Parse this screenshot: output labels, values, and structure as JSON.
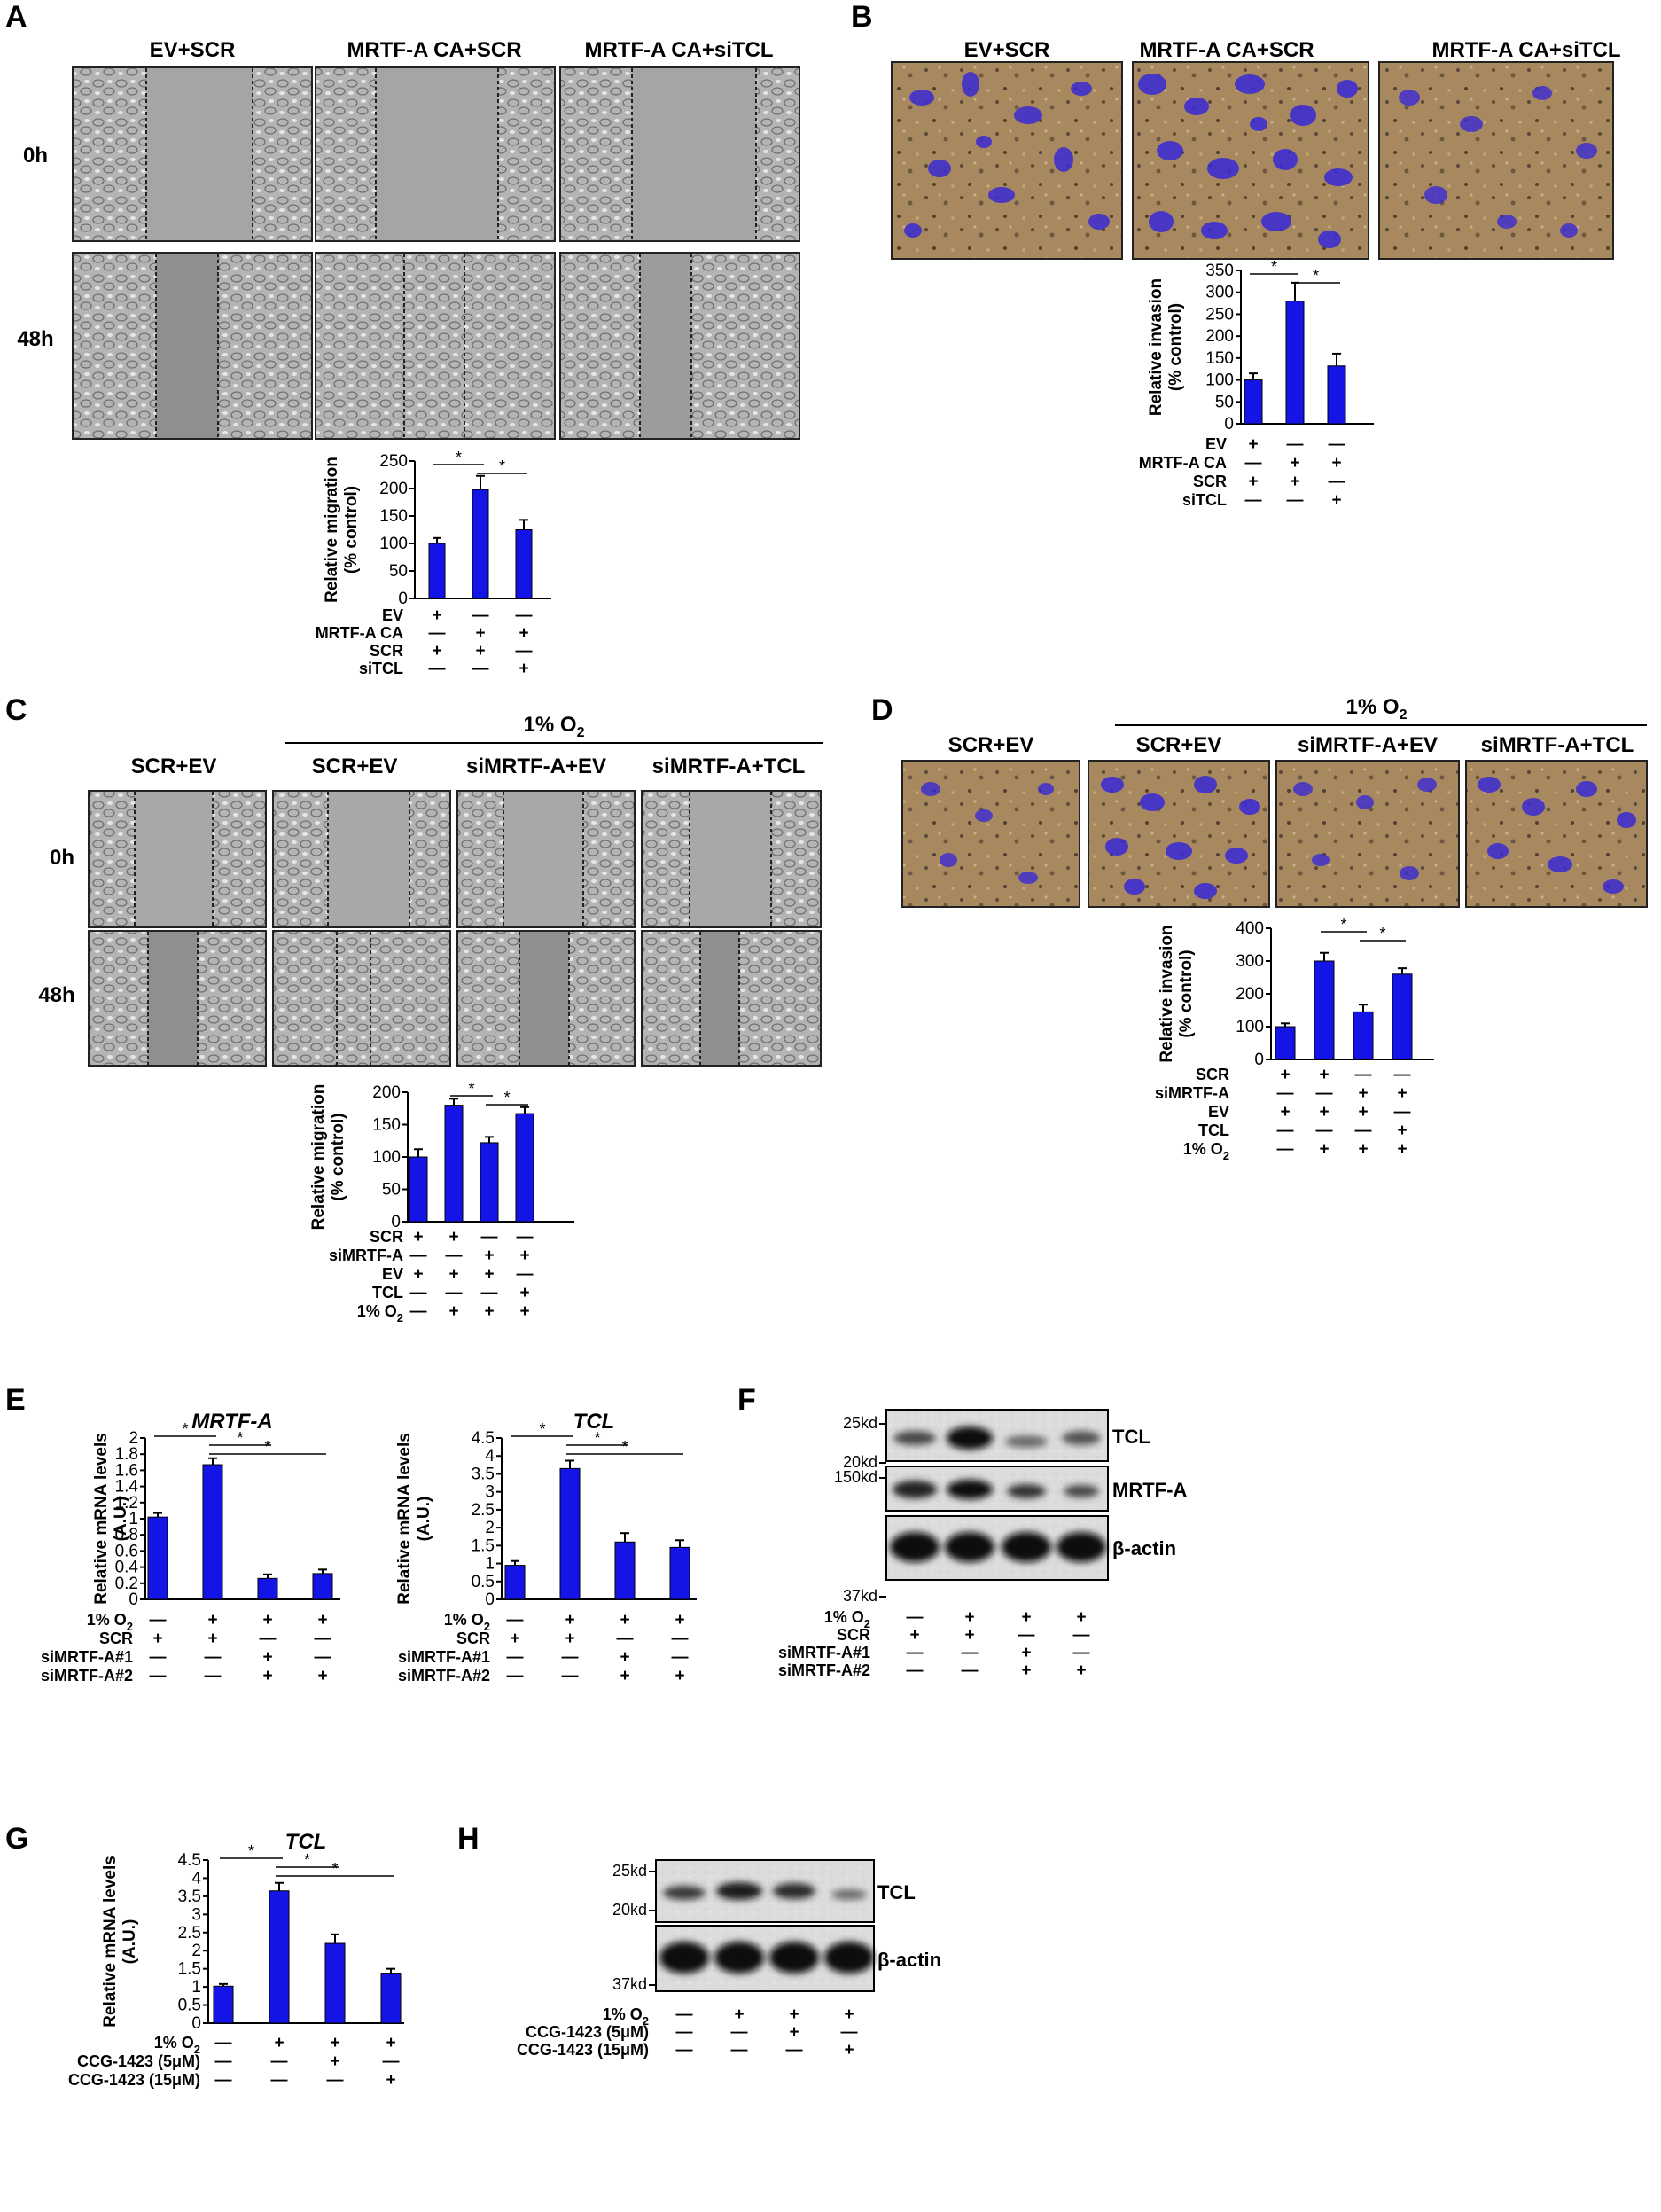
{
  "colors": {
    "bar": "#1414e6",
    "axis": "#000000",
    "micro_bg": "#a9a9a9",
    "invasion_bg": "#b08a5e",
    "cells": "#3a2cd0"
  },
  "panels": {
    "A": {
      "letter": "A",
      "headers": [
        "EV+SCR",
        "MRTF-A CA+SCR",
        "MRTF-A CA+siTCL"
      ],
      "rows": [
        "0h",
        "48h"
      ]
    },
    "B": {
      "letter": "B",
      "headers": [
        "EV+SCR",
        "MRTF-A CA+SCR",
        "MRTF-A CA+siTCL"
      ]
    },
    "C": {
      "letter": "C",
      "headers": [
        "SCR+EV",
        "SCR+EV",
        "siMRTF-A+EV",
        "siMRTF-A+TCL"
      ],
      "bracket_label": "1% O",
      "bracket_sub": "2",
      "rows": [
        "0h",
        "48h"
      ]
    },
    "D": {
      "letter": "D",
      "headers": [
        "SCR+EV",
        "SCR+EV",
        "siMRTF-A+EV",
        "siMRTF-A+TCL"
      ],
      "bracket_label": "1% O",
      "bracket_sub": "2"
    },
    "E": {
      "letter": "E"
    },
    "F": {
      "letter": "F",
      "markers": [
        "25kd",
        "20kd",
        "150kd",
        "37kd"
      ],
      "labels": [
        "TCL",
        "MRTF-A",
        "β-actin"
      ],
      "conditions": [
        {
          "label": "1% O",
          "sub": "2",
          "signs": [
            "—",
            "+",
            "+",
            "+"
          ]
        },
        {
          "label": "SCR",
          "sub": "",
          "signs": [
            "+",
            "+",
            "—",
            "—"
          ]
        },
        {
          "label": "siMRTF-A#1",
          "sub": "",
          "signs": [
            "—",
            "—",
            "+",
            "—"
          ]
        },
        {
          "label": "siMRTF-A#2",
          "sub": "",
          "signs": [
            "—",
            "—",
            "+",
            "+"
          ]
        }
      ]
    },
    "G": {
      "letter": "G"
    },
    "H": {
      "letter": "H",
      "markers": [
        "25kd",
        "20kd",
        "37kd"
      ],
      "labels": [
        "TCL",
        "β-actin"
      ],
      "conditions": [
        {
          "label": "1% O",
          "sub": "2",
          "signs": [
            "—",
            "+",
            "+",
            "+"
          ]
        },
        {
          "label": "CCG-1423 (5μM)",
          "sub": "",
          "signs": [
            "—",
            "—",
            "+",
            "—"
          ]
        },
        {
          "label": "CCG-1423 (15μM)",
          "sub": "",
          "signs": [
            "—",
            "—",
            "—",
            "+"
          ]
        }
      ]
    }
  },
  "chart_data": [
    {
      "id": "A",
      "type": "bar",
      "title": "",
      "ylabel": [
        "Relative migration",
        "(% control)"
      ],
      "ylim": [
        0,
        250
      ],
      "yticks": [
        0,
        50,
        100,
        150,
        200,
        250
      ],
      "values": [
        100,
        198,
        125
      ],
      "errors": [
        10,
        25,
        18
      ],
      "significance": [
        [
          0,
          1
        ],
        [
          1,
          2
        ]
      ],
      "conditions": [
        {
          "label": "EV",
          "sub": "",
          "signs": [
            "+",
            "—",
            "—"
          ]
        },
        {
          "label": "MRTF-A CA",
          "sub": "",
          "signs": [
            "—",
            "+",
            "+"
          ]
        },
        {
          "label": "SCR",
          "sub": "",
          "signs": [
            "+",
            "+",
            "—"
          ]
        },
        {
          "label": "siTCL",
          "sub": "",
          "signs": [
            "—",
            "—",
            "+"
          ]
        }
      ]
    },
    {
      "id": "B",
      "type": "bar",
      "title": "",
      "ylabel": [
        "Relative invasion",
        "(% control)"
      ],
      "ylim": [
        0,
        350
      ],
      "yticks": [
        0,
        50,
        100,
        150,
        200,
        250,
        300,
        350
      ],
      "values": [
        100,
        280,
        132
      ],
      "errors": [
        15,
        42,
        28
      ],
      "significance": [
        [
          0,
          1
        ],
        [
          1,
          2
        ]
      ],
      "conditions": [
        {
          "label": "EV",
          "sub": "",
          "signs": [
            "+",
            "—",
            "—"
          ]
        },
        {
          "label": "MRTF-A CA",
          "sub": "",
          "signs": [
            "—",
            "+",
            "+"
          ]
        },
        {
          "label": "SCR",
          "sub": "",
          "signs": [
            "+",
            "+",
            "—"
          ]
        },
        {
          "label": "siTCL",
          "sub": "",
          "signs": [
            "—",
            "—",
            "+"
          ]
        }
      ]
    },
    {
      "id": "C",
      "type": "bar",
      "title": "",
      "ylabel": [
        "Relative migration",
        "(% control)"
      ],
      "ylim": [
        0,
        200
      ],
      "yticks": [
        0,
        50,
        100,
        150,
        200
      ],
      "values": [
        100,
        180,
        122,
        167
      ],
      "errors": [
        12,
        10,
        9,
        10
      ],
      "significance": [
        [
          1,
          2
        ],
        [
          2,
          3
        ]
      ],
      "conditions": [
        {
          "label": "SCR",
          "sub": "",
          "signs": [
            "+",
            "+",
            "—",
            "—"
          ]
        },
        {
          "label": "siMRTF-A",
          "sub": "",
          "signs": [
            "—",
            "—",
            "+",
            "+"
          ]
        },
        {
          "label": "EV",
          "sub": "",
          "signs": [
            "+",
            "+",
            "+",
            "—"
          ]
        },
        {
          "label": "TCL",
          "sub": "",
          "signs": [
            "—",
            "—",
            "—",
            "+"
          ]
        },
        {
          "label": "1% O",
          "sub": "2",
          "signs": [
            "—",
            "+",
            "+",
            "+"
          ]
        }
      ]
    },
    {
      "id": "D",
      "type": "bar",
      "title": "",
      "ylabel": [
        "Relative invasion",
        "(% control)"
      ],
      "ylim": [
        0,
        400
      ],
      "yticks": [
        0,
        100,
        200,
        300,
        400
      ],
      "values": [
        100,
        300,
        145,
        260
      ],
      "errors": [
        10,
        25,
        22,
        18
      ],
      "significance": [
        [
          1,
          2
        ],
        [
          2,
          3
        ]
      ],
      "conditions": [
        {
          "label": "SCR",
          "sub": "",
          "signs": [
            "+",
            "+",
            "—",
            "—"
          ]
        },
        {
          "label": "siMRTF-A",
          "sub": "",
          "signs": [
            "—",
            "—",
            "+",
            "+"
          ]
        },
        {
          "label": "EV",
          "sub": "",
          "signs": [
            "+",
            "+",
            "+",
            "—"
          ]
        },
        {
          "label": "TCL",
          "sub": "",
          "signs": [
            "—",
            "—",
            "—",
            "+"
          ]
        },
        {
          "label": "1% O",
          "sub": "2",
          "signs": [
            "—",
            "+",
            "+",
            "+"
          ]
        }
      ]
    },
    {
      "id": "E1",
      "type": "bar",
      "title": "MRTF-A",
      "ylabel": [
        "Relative mRNA levels",
        "(A.U.)"
      ],
      "ylim": [
        0,
        2
      ],
      "yticks": [
        0,
        0.2,
        0.4,
        0.6,
        0.8,
        1,
        1.2,
        1.4,
        1.6,
        1.8,
        2
      ],
      "values": [
        1.02,
        1.67,
        0.26,
        0.32
      ],
      "errors": [
        0.05,
        0.08,
        0.05,
        0.05
      ],
      "significance": [
        [
          0,
          1
        ],
        [
          1,
          2
        ],
        [
          1,
          3
        ]
      ],
      "conditions": [
        {
          "label": "1% O",
          "sub": "2",
          "signs": [
            "—",
            "+",
            "+",
            "+"
          ]
        },
        {
          "label": "SCR",
          "sub": "",
          "signs": [
            "+",
            "+",
            "—",
            "—"
          ]
        },
        {
          "label": "siMRTF-A#1",
          "sub": "",
          "signs": [
            "—",
            "—",
            "+",
            "—"
          ]
        },
        {
          "label": "siMRTF-A#2",
          "sub": "",
          "signs": [
            "—",
            "—",
            "+",
            "+"
          ]
        }
      ]
    },
    {
      "id": "E2",
      "type": "bar",
      "title": "TCL",
      "ylabel": [
        "Relative mRNA levels",
        "(A.U.)"
      ],
      "ylim": [
        0,
        4.5
      ],
      "yticks": [
        0,
        0.5,
        1,
        1.5,
        2,
        2.5,
        3,
        3.5,
        4,
        4.5
      ],
      "values": [
        0.95,
        3.65,
        1.6,
        1.45
      ],
      "errors": [
        0.12,
        0.22,
        0.25,
        0.2
      ],
      "significance": [
        [
          0,
          1
        ],
        [
          1,
          2
        ],
        [
          1,
          3
        ]
      ],
      "conditions": [
        {
          "label": "1% O",
          "sub": "2",
          "signs": [
            "—",
            "+",
            "+",
            "+"
          ]
        },
        {
          "label": "SCR",
          "sub": "",
          "signs": [
            "+",
            "+",
            "—",
            "—"
          ]
        },
        {
          "label": "siMRTF-A#1",
          "sub": "",
          "signs": [
            "—",
            "—",
            "+",
            "—"
          ]
        },
        {
          "label": "siMRTF-A#2",
          "sub": "",
          "signs": [
            "—",
            "—",
            "+",
            "+"
          ]
        }
      ]
    },
    {
      "id": "G",
      "type": "bar",
      "title": "TCL",
      "ylabel": [
        "Relative mRNA levels",
        "(A.U.)"
      ],
      "ylim": [
        0,
        4.5
      ],
      "yticks": [
        0,
        0.5,
        1,
        1.5,
        2,
        2.5,
        3,
        3.5,
        4,
        4.5
      ],
      "values": [
        1.02,
        3.65,
        2.2,
        1.38
      ],
      "errors": [
        0.06,
        0.22,
        0.25,
        0.12
      ],
      "significance": [
        [
          0,
          1
        ],
        [
          1,
          2
        ],
        [
          1,
          3
        ]
      ],
      "conditions": [
        {
          "label": "1% O",
          "sub": "2",
          "signs": [
            "—",
            "+",
            "+",
            "+"
          ]
        },
        {
          "label": "CCG-1423 (5μM)",
          "sub": "",
          "signs": [
            "—",
            "—",
            "+",
            "—"
          ]
        },
        {
          "label": "CCG-1423 (15μM)",
          "sub": "",
          "signs": [
            "—",
            "—",
            "—",
            "+"
          ]
        }
      ]
    }
  ]
}
